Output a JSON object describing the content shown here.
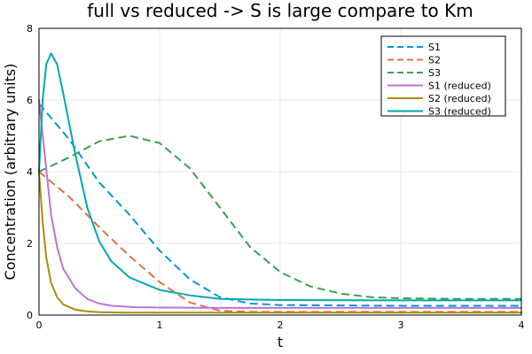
{
  "chart_data": {
    "type": "line",
    "title": "full vs reduced -> S is large compare to Km",
    "xlabel": "t",
    "ylabel": "Concentration (arbitrary units)",
    "xlim": [
      0,
      4
    ],
    "ylim": [
      0,
      8
    ],
    "xticks": [
      "0",
      "1",
      "2",
      "3",
      "4"
    ],
    "yticks": [
      "0",
      "2",
      "4",
      "6",
      "8"
    ],
    "grid": true,
    "legend_position": "top-right",
    "series": [
      {
        "name": "S1",
        "color": "#0099d6",
        "style": "dashed",
        "x": [
          0,
          0.25,
          0.5,
          0.75,
          1.0,
          1.25,
          1.5,
          1.75,
          2.0,
          2.5,
          3.0,
          3.5,
          4.0
        ],
        "y": [
          5.9,
          4.9,
          3.7,
          2.8,
          1.8,
          1.0,
          0.5,
          0.32,
          0.28,
          0.27,
          0.26,
          0.26,
          0.26
        ]
      },
      {
        "name": "S2",
        "color": "#e26f46",
        "style": "dashed",
        "x": [
          0,
          0.25,
          0.5,
          0.75,
          1.0,
          1.25,
          1.5,
          1.75,
          2.0,
          2.5,
          3.0,
          3.5,
          4.0
        ],
        "y": [
          4.0,
          3.3,
          2.45,
          1.65,
          0.92,
          0.35,
          0.12,
          0.09,
          0.09,
          0.09,
          0.09,
          0.09,
          0.09
        ]
      },
      {
        "name": "S3",
        "color": "#3ba04d",
        "style": "dashed",
        "x": [
          0,
          0.25,
          0.5,
          0.75,
          1.0,
          1.25,
          1.5,
          1.75,
          2.0,
          2.25,
          2.5,
          2.75,
          3.0,
          3.5,
          4.0
        ],
        "y": [
          4.0,
          4.4,
          4.85,
          5.0,
          4.8,
          4.1,
          3.0,
          1.9,
          1.2,
          0.8,
          0.6,
          0.5,
          0.47,
          0.45,
          0.45
        ]
      },
      {
        "name": "S1 (reduced)",
        "color": "#c271d2",
        "style": "solid",
        "x": [
          0,
          0.05,
          0.1,
          0.15,
          0.2,
          0.3,
          0.4,
          0.5,
          0.6,
          0.8,
          1.0,
          1.5,
          2.0,
          3.0,
          4.0
        ],
        "y": [
          6.0,
          4.4,
          2.8,
          1.9,
          1.3,
          0.75,
          0.45,
          0.32,
          0.26,
          0.22,
          0.21,
          0.2,
          0.2,
          0.2,
          0.2
        ]
      },
      {
        "name": "S2 (reduced)",
        "color": "#ab8d0d",
        "style": "solid",
        "x": [
          0,
          0.03,
          0.06,
          0.1,
          0.15,
          0.2,
          0.3,
          0.4,
          0.5,
          0.7,
          1.0,
          2.0,
          3.0,
          4.0
        ],
        "y": [
          4.0,
          2.6,
          1.6,
          0.9,
          0.5,
          0.3,
          0.15,
          0.1,
          0.08,
          0.07,
          0.07,
          0.07,
          0.07,
          0.07
        ]
      },
      {
        "name": "S3 (reduced)",
        "color": "#00a9ad",
        "style": "solid",
        "x": [
          0,
          0.03,
          0.06,
          0.1,
          0.15,
          0.2,
          0.3,
          0.4,
          0.5,
          0.6,
          0.75,
          1.0,
          1.25,
          1.5,
          2.0,
          3.0,
          4.0
        ],
        "y": [
          4.0,
          6.0,
          7.0,
          7.3,
          7.0,
          6.2,
          4.5,
          3.0,
          2.05,
          1.5,
          1.05,
          0.7,
          0.55,
          0.45,
          0.42,
          0.41,
          0.41
        ]
      }
    ]
  }
}
